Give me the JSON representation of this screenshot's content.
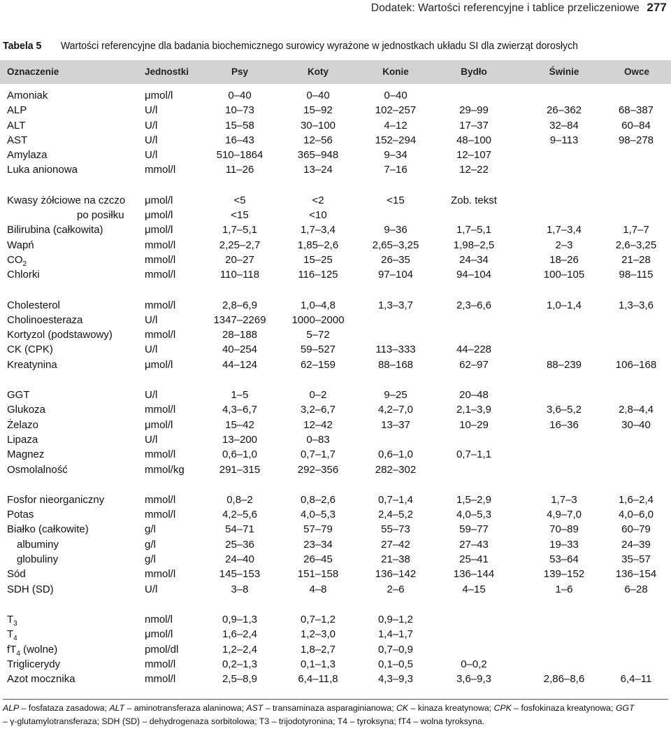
{
  "running_head": {
    "text": "Dodatek: Wartości referencyjne i tablice przeliczeniowe",
    "page": "277"
  },
  "caption": {
    "label": "Tabela 5",
    "title": "Wartości referencyjne dla badania biochemicznego surowicy wyrażone w jednostkach układu SI dla zwierząt dorosłych"
  },
  "headers": [
    "Oznaczenie",
    "Jednostki",
    "Psy",
    "Koty",
    "Konie",
    "Bydło",
    "Świnie",
    "Owce"
  ],
  "rows": [
    {
      "name": "Amoniak",
      "unit": "μmol/l",
      "psy": "0–40",
      "koty": "0–40",
      "konie": "0–40",
      "bydlo": "",
      "swinie": "",
      "owce": ""
    },
    {
      "name": "ALP",
      "unit": "U/l",
      "psy": "10–73",
      "koty": "15–92",
      "konie": "102–257",
      "bydlo": "29–99",
      "swinie": "26–362",
      "owce": "68–387"
    },
    {
      "name": "ALT",
      "unit": "U/l",
      "psy": "15–58",
      "koty": "30–100",
      "konie": "4–12",
      "bydlo": "17–37",
      "swinie": "32–84",
      "owce": "60–84"
    },
    {
      "name": "AST",
      "unit": "U/l",
      "psy": "16–43",
      "koty": "12–56",
      "konie": "152–294",
      "bydlo": "48–100",
      "swinie": "9–113",
      "owce": "98–278"
    },
    {
      "name": "Amylaza",
      "unit": "U/l",
      "psy": "510–1864",
      "koty": "365–948",
      "konie": "9–34",
      "bydlo": "12–107",
      "swinie": "",
      "owce": ""
    },
    {
      "name": "Luka anionowa",
      "unit": "mmol/l",
      "psy": "11–26",
      "koty": "13–24",
      "konie": "7–16",
      "bydlo": "12–22",
      "swinie": "",
      "owce": ""
    },
    {
      "gap": true
    },
    {
      "name": "Kwasy żółciowe na czczo",
      "unit": "μmol/l",
      "psy": "<5",
      "koty": "<2",
      "konie": "<15",
      "bydlo": "Zob. tekst",
      "swinie": "",
      "owce": ""
    },
    {
      "name": "po posiłku",
      "indent": 2,
      "unit": "μmol/l",
      "psy": "<15",
      "koty": "<10",
      "konie": "",
      "bydlo": "",
      "swinie": "",
      "owce": ""
    },
    {
      "name": "Bilirubina (całkowita)",
      "unit": "μmol/l",
      "psy": "1,7–5,1",
      "koty": "1,7–3,4",
      "konie": "9–36",
      "bydlo": "1,7–5,1",
      "swinie": "1,7–3,4",
      "owce": "1,7–7"
    },
    {
      "name": "Wapń",
      "unit": "mmol/l",
      "psy": "2,25–2,7",
      "koty": "1,85–2,6",
      "konie": "2,65–3,25",
      "bydlo": "1,98–2,5",
      "swinie": "2–3",
      "owce": "2,6–3,25"
    },
    {
      "name": "CO",
      "sub": "2",
      "unit": "mmol/l",
      "psy": "20–27",
      "koty": "15–25",
      "konie": "26–35",
      "bydlo": "24–34",
      "swinie": "18–26",
      "owce": "21–28"
    },
    {
      "name": "Chlorki",
      "unit": "mmol/l",
      "psy": "110–118",
      "koty": "116–125",
      "konie": "97–104",
      "bydlo": "94–104",
      "swinie": "100–105",
      "owce": "98–115"
    },
    {
      "gap": true
    },
    {
      "name": "Cholesterol",
      "unit": "mmol/l",
      "psy": "2,8–6,9",
      "koty": "1,0–4,8",
      "konie": "1,3–3,7",
      "bydlo": "2,3–6,6",
      "swinie": "1,0–1,4",
      "owce": "1,3–3,6"
    },
    {
      "name": "Cholinoesteraza",
      "unit": "U/l",
      "psy": "1347–2269",
      "koty": "1000–2000",
      "konie": "",
      "bydlo": "",
      "swinie": "",
      "owce": ""
    },
    {
      "name": "Kortyzol (podstawowy)",
      "unit": "mmol/l",
      "psy": "28–188",
      "koty": "5–72",
      "konie": "",
      "bydlo": "",
      "swinie": "",
      "owce": ""
    },
    {
      "name": "CK (CPK)",
      "unit": "U/l",
      "psy": "40–254",
      "koty": "59–527",
      "konie": "113–333",
      "bydlo": "44–228",
      "swinie": "",
      "owce": ""
    },
    {
      "name": "Kreatynina",
      "unit": "μmol/l",
      "psy": "44–124",
      "koty": "62–159",
      "konie": "88–168",
      "bydlo": "62–97",
      "swinie": "88–239",
      "owce": "106–168"
    },
    {
      "gap": true
    },
    {
      "name": "GGT",
      "unit": "U/l",
      "psy": "1–5",
      "koty": "0–2",
      "konie": "9–25",
      "bydlo": "20–48",
      "swinie": "",
      "owce": ""
    },
    {
      "name": "Glukoza",
      "unit": "mmol/l",
      "psy": "4,3–6,7",
      "koty": "3,2–6,7",
      "konie": "4,2–7,0",
      "bydlo": "2,1–3,9",
      "swinie": "3,6–5,2",
      "owce": "2,8–4,4"
    },
    {
      "name": "Żelazo",
      "unit": "μmol/l",
      "psy": "15–42",
      "koty": "12–42",
      "konie": "13–37",
      "bydlo": "10–29",
      "swinie": "16–36",
      "owce": "30–40"
    },
    {
      "name": "Lipaza",
      "unit": "U/l",
      "psy": "13–200",
      "koty": "0–83",
      "konie": "",
      "bydlo": "",
      "swinie": "",
      "owce": ""
    },
    {
      "name": "Magnez",
      "unit": "mmol/l",
      "psy": "0,6–1,0",
      "koty": "0,7–1,7",
      "konie": "0,6–1,0",
      "bydlo": "0,7–1,1",
      "swinie": "",
      "owce": ""
    },
    {
      "name": "Osmolalność",
      "unit": "mmol/kg",
      "psy": "291–315",
      "koty": "292–356",
      "konie": "282–302",
      "bydlo": "",
      "swinie": "",
      "owce": ""
    },
    {
      "gap": true
    },
    {
      "name": "Fosfor nieorganiczny",
      "unit": "mmol/l",
      "psy": "0,8–2",
      "koty": "0,8–2,6",
      "konie": "0,7–1,4",
      "bydlo": "1,5–2,9",
      "swinie": "1,7–3",
      "owce": "1,6–2,4"
    },
    {
      "name": "Potas",
      "unit": "mmol/l",
      "psy": "4,2–5,6",
      "koty": "4,0–5,3",
      "konie": "2,4–5,2",
      "bydlo": "4,0–5,3",
      "swinie": "4,9–7,0",
      "owce": "4,0–6,0"
    },
    {
      "name": "Białko (całkowite)",
      "unit": "g/l",
      "psy": "54–71",
      "koty": "57–79",
      "konie": "55–73",
      "bydlo": "59–77",
      "swinie": "70–89",
      "owce": "60–79"
    },
    {
      "name": "albuminy",
      "indent": 1,
      "unit": "g/l",
      "psy": "25–36",
      "koty": "23–34",
      "konie": "27–42",
      "bydlo": "27–43",
      "swinie": "19–33",
      "owce": "24–39"
    },
    {
      "name": "globuliny",
      "indent": 1,
      "unit": "g/l",
      "psy": "24–40",
      "koty": "26–45",
      "konie": "21–38",
      "bydlo": "25–41",
      "swinie": "53–64",
      "owce": "35–57"
    },
    {
      "name": "Sód",
      "unit": "mmol/l",
      "psy": "145–153",
      "koty": "151–158",
      "konie": "136–142",
      "bydlo": "136–144",
      "swinie": "139–152",
      "owce": "136–154"
    },
    {
      "name": "SDH (SD)",
      "unit": "U/l",
      "psy": "3–8",
      "koty": "4–8",
      "konie": "2–6",
      "bydlo": "4–15",
      "swinie": "1–6",
      "owce": "6–28"
    },
    {
      "gap": true
    },
    {
      "name": "T",
      "sub": "3",
      "unit": "nmol/l",
      "psy": "0,9–1,3",
      "koty": "0,7–1,2",
      "konie": "0,9–1,2",
      "bydlo": "",
      "swinie": "",
      "owce": ""
    },
    {
      "name": "T",
      "sub": "4",
      "unit": "μmol/l",
      "psy": "1,6–2,4",
      "koty": "1,2–3,0",
      "konie": "1,4–1,7",
      "bydlo": "",
      "swinie": "",
      "owce": ""
    },
    {
      "name": "fT",
      "sub": "4",
      "suffix": " (wolne)",
      "unit": "pmol/dl",
      "psy": "1,2–2,4",
      "koty": "1,8–2,7",
      "konie": "0,7–0,9",
      "bydlo": "",
      "swinie": "",
      "owce": ""
    },
    {
      "name": "Triglicerydy",
      "unit": "mmol/l",
      "psy": "0,2–1,3",
      "koty": "0,1–1,3",
      "konie": "0,1–0,5",
      "bydlo": "0–0,2",
      "swinie": "",
      "owce": ""
    },
    {
      "name": "Azot mocznika",
      "unit": "mmol/l",
      "psy": "2,5–8,9",
      "koty": "6,4–11,8",
      "konie": "4,3–9,3",
      "bydlo": "3,6–9,3",
      "swinie": "2,86–8,6",
      "owce": "6,4–11"
    }
  ],
  "footnote": {
    "line1": [
      [
        "ALP",
        " – fosfataza zasadowa; "
      ],
      [
        "ALT",
        " – aminotransferaza alaninowa; "
      ],
      [
        "AST",
        " – transaminaza asparaginianowa; "
      ],
      [
        "CK",
        " – kinaza kreatynowa; "
      ],
      [
        "CPK",
        " – fosfokinaza kreatynowa; "
      ],
      [
        "GGT",
        ""
      ]
    ],
    "line2": "– γ-glutamylotransferaza; SDH (SD) – dehydrogenaza sorbitolowa; T3 – trijodotyronina; T4 – tyroksyna; fT4 – wolna tyroksyna."
  }
}
